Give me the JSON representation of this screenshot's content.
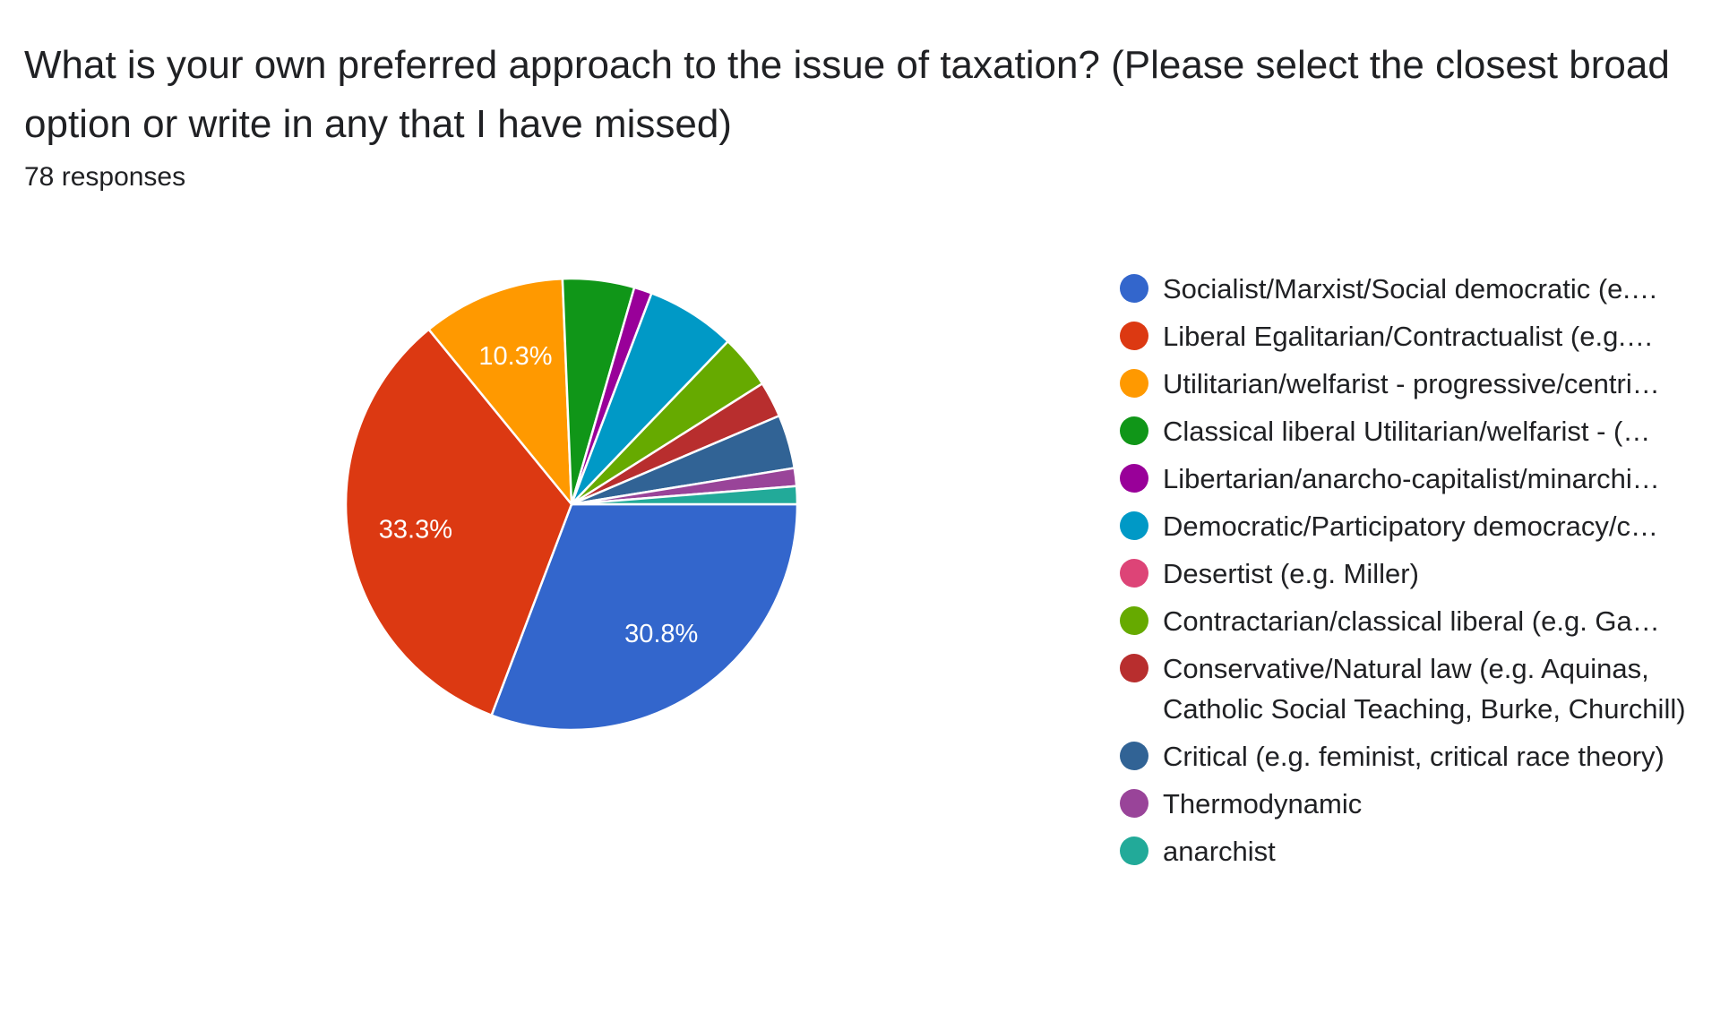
{
  "header": {
    "title": "What is your own preferred approach to the issue of taxation? (Please select the closest broad option or write in any that I have missed)",
    "responses": "78 responses"
  },
  "chart_data": {
    "type": "pie",
    "title": "What is your own preferred approach to the issue of taxation? (Please select the closest broad option or write in any that I have missed)",
    "total_responses": 78,
    "legend_position": "right",
    "slices": [
      {
        "legend": "Socialist/Marxist/Social democratic (e.…",
        "count": 24,
        "percent": 30.8,
        "label": "30.8%",
        "color": "#3366cc",
        "truncated": true
      },
      {
        "legend": "Liberal Egalitarian/Contractualist (e.g.…",
        "count": 26,
        "percent": 33.3,
        "label": "33.3%",
        "color": "#dc3912",
        "truncated": true
      },
      {
        "legend": "Utilitarian/welfarist - progressive/centri…",
        "count": 8,
        "percent": 10.3,
        "label": "10.3%",
        "color": "#ff9900",
        "truncated": true
      },
      {
        "legend": "Classical liberal Utilitarian/welfarist - (…",
        "count": 4,
        "percent": 5.1,
        "label": "",
        "color": "#109618",
        "truncated": true
      },
      {
        "legend": "Libertarian/anarcho-capitalist/minarchi…",
        "count": 1,
        "percent": 1.3,
        "label": "",
        "color": "#990099",
        "truncated": true
      },
      {
        "legend": "Democratic/Participatory democracy/c…",
        "count": 5,
        "percent": 6.4,
        "label": "",
        "color": "#0099c6",
        "truncated": true
      },
      {
        "legend": "Desertist (e.g. Miller)",
        "count": 0,
        "percent": 0,
        "label": "",
        "color": "#dd4477",
        "truncated": false
      },
      {
        "legend": "Contractarian/classical liberal (e.g. Ga…",
        "count": 3,
        "percent": 3.8,
        "label": "",
        "color": "#66aa00",
        "truncated": true
      },
      {
        "legend": "Conservative/Natural law (e.g. Aquinas, Catholic Social Teaching, Burke, Churchill)",
        "count": 2,
        "percent": 2.6,
        "label": "",
        "color": "#b82e2e",
        "truncated": false
      },
      {
        "legend": "Critical (e.g. feminist, critical race theory)",
        "count": 3,
        "percent": 3.8,
        "label": "",
        "color": "#316395",
        "truncated": false
      },
      {
        "legend": "Thermodynamic",
        "count": 1,
        "percent": 1.3,
        "label": "",
        "color": "#994499",
        "truncated": false
      },
      {
        "legend": "anarchist",
        "count": 1,
        "percent": 1.3,
        "label": "",
        "color": "#22aa99",
        "truncated": false
      }
    ]
  }
}
